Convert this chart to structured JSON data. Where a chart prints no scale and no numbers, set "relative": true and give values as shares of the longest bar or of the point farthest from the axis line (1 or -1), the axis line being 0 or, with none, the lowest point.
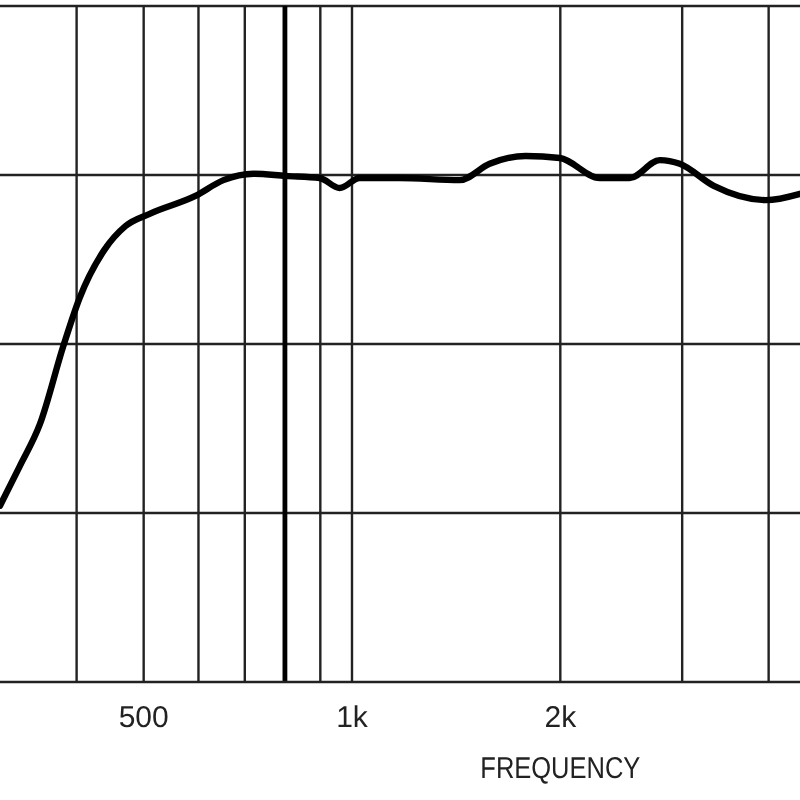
{
  "chart_data": {
    "type": "line",
    "xlabel": "FREQUENCY",
    "log": "x",
    "relative": true,
    "grid": true,
    "tick_labels": "x",
    "marker": "none",
    "line_style": "solid",
    "xlim": [
      310,
      4440
    ],
    "xticks": [
      {
        "value": 400,
        "label": null
      },
      {
        "value": 500,
        "label": "500"
      },
      {
        "value": 600,
        "label": null
      },
      {
        "value": 700,
        "label": null
      },
      {
        "value": 900,
        "label": null
      },
      {
        "value": 1000,
        "label": "1k"
      },
      {
        "value": 2000,
        "label": "2k"
      },
      {
        "value": 3000,
        "label": null
      },
      {
        "value": 4000,
        "label": null
      }
    ],
    "ref_lines": [
      {
        "axis": "x",
        "value": 800,
        "color": "#000000"
      }
    ],
    "x": [
      310,
      331,
      354,
      383,
      404,
      438,
      471,
      510,
      594,
      652,
      721,
      802,
      898,
      960,
      1026,
      1172,
      1431,
      1581,
      1782,
      1997,
      2281,
      2518,
      2785,
      2976,
      3333,
      3962,
      4440
    ],
    "series": [
      {
        "color": "#000000",
        "values": [
          0.335,
          0.41,
          0.49,
          0.64,
          0.73,
          0.82,
          0.867,
          0.89,
          0.924,
          0.954,
          0.966,
          0.962,
          0.958,
          0.939,
          0.958,
          0.958,
          0.954,
          0.985,
          1,
          0.996,
          0.958,
          0.958,
          0.992,
          0.985,
          0.943,
          0.916,
          0.928
        ]
      }
    ]
  }
}
